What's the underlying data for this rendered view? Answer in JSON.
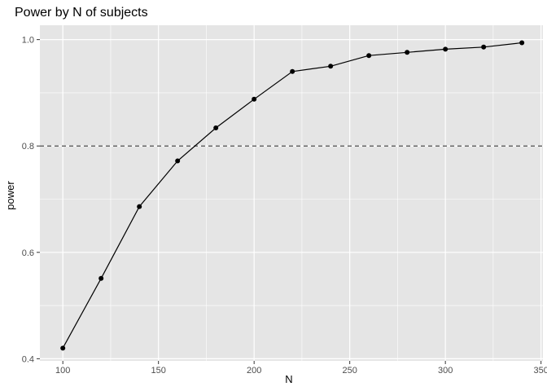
{
  "chart_data": {
    "type": "line",
    "title": "Power by N of subjects",
    "xlabel": "N",
    "ylabel": "power",
    "x": [
      100,
      120,
      140,
      160,
      180,
      200,
      220,
      240,
      260,
      280,
      300,
      320,
      340
    ],
    "series": [
      {
        "values": [
          0.42,
          0.551,
          0.686,
          0.772,
          0.834,
          0.888,
          0.94,
          0.95,
          0.97,
          0.976,
          0.982,
          0.986,
          0.994
        ]
      }
    ],
    "reference_line": {
      "y": 0.8,
      "style": "dashed"
    },
    "xlim": [
      88,
      351
    ],
    "ylim": [
      0.396,
      1.027
    ],
    "x_ticks": [
      100,
      150,
      200,
      250,
      300,
      350
    ],
    "x_tick_labels": [
      "100",
      "150",
      "200",
      "250",
      "300",
      "350"
    ],
    "y_ticks": [
      0.4,
      0.6,
      0.8,
      1.0
    ],
    "y_tick_labels": [
      "0.4",
      "0.6",
      "0.8",
      "1.0"
    ],
    "grid": true,
    "colors": {
      "panel": "#e5e5e5",
      "grid": "#ffffff",
      "line": "#000000",
      "reference": "#4d4d4d",
      "tick_text": "#4d4d4d"
    }
  }
}
